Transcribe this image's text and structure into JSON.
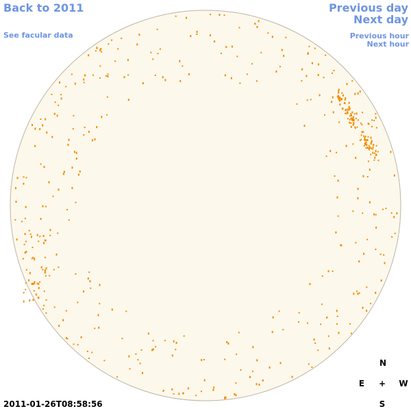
{
  "links": {
    "back": "Back to 2011",
    "facular": "See facular data",
    "previous_day": "Previous day",
    "next_day": "Next day",
    "previous_hour": "Previous hour",
    "next_hour": "Next hour"
  },
  "timestamp": "2011-01-26T08:58:56",
  "compass": {
    "north": "N",
    "east": "E",
    "center": "+",
    "west": "W",
    "south": "S"
  }
}
